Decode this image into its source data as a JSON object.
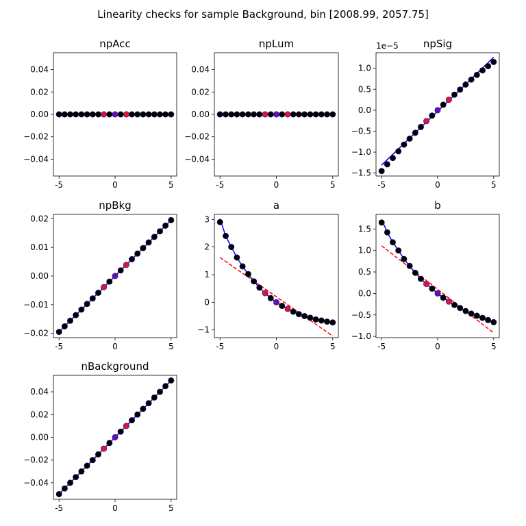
{
  "figure": {
    "title": "Linearity checks for sample Background, bin [2008.99, 2057.75]"
  },
  "chart_data": [
    {
      "type": "scatter",
      "title": "npAcc",
      "xlim": [
        -5.5,
        5.5
      ],
      "ylim": [
        -0.055,
        0.055
      ],
      "xticks": [
        "-5",
        "0",
        "5"
      ],
      "xtick_values": [
        -5,
        0,
        5
      ],
      "yticks": [
        "−0.04",
        "−0.02",
        "0.00",
        "0.02",
        "0.04"
      ],
      "ytick_values": [
        -0.04,
        -0.02,
        0,
        0.02,
        0.04
      ],
      "x": [
        -5,
        -4.5,
        -4,
        -3.5,
        -3,
        -2.5,
        -2,
        -1.5,
        -1,
        -0.5,
        0,
        0.5,
        1,
        1.5,
        2,
        2.5,
        3,
        3.5,
        4,
        4.5,
        5
      ],
      "y": [
        0,
        0,
        0,
        0,
        0,
        0,
        0,
        0,
        0,
        0,
        0,
        0,
        0,
        0,
        0,
        0,
        0,
        0,
        0,
        0,
        0
      ],
      "highlight": {
        "-1": "red",
        "0": "purple",
        "1": "red"
      },
      "blue_line": [
        [
          -5,
          0
        ],
        [
          5,
          0
        ]
      ],
      "red_dashed": [
        [
          -5,
          0
        ],
        [
          5,
          0
        ]
      ]
    },
    {
      "type": "scatter",
      "title": "npLum",
      "xlim": [
        -5.5,
        5.5
      ],
      "ylim": [
        -0.055,
        0.055
      ],
      "xticks": [
        "-5",
        "0",
        "5"
      ],
      "xtick_values": [
        -5,
        0,
        5
      ],
      "yticks": [
        "−0.04",
        "−0.02",
        "0.00",
        "0.02",
        "0.04"
      ],
      "ytick_values": [
        -0.04,
        -0.02,
        0,
        0.02,
        0.04
      ],
      "x": [
        -5,
        -4.5,
        -4,
        -3.5,
        -3,
        -2.5,
        -2,
        -1.5,
        -1,
        -0.5,
        0,
        0.5,
        1,
        1.5,
        2,
        2.5,
        3,
        3.5,
        4,
        4.5,
        5
      ],
      "y": [
        0,
        0,
        0,
        0,
        0,
        0,
        0,
        0,
        0,
        0,
        0,
        0,
        0,
        0,
        0,
        0,
        0,
        0,
        0,
        0,
        0
      ],
      "highlight": {
        "-1": "red",
        "0": "purple",
        "1": "red"
      },
      "blue_line": [
        [
          -5,
          0
        ],
        [
          5,
          0
        ]
      ],
      "red_dashed": [
        [
          -5,
          0
        ],
        [
          5,
          0
        ]
      ]
    },
    {
      "type": "scatter",
      "title": "npSig",
      "offset_label": "1e−5",
      "xlim": [
        -5.5,
        5.5
      ],
      "ylim": [
        -1.57,
        1.37
      ],
      "xticks": [
        "-5",
        "0",
        "5"
      ],
      "xtick_values": [
        -5,
        0,
        5
      ],
      "yticks": [
        "−1.5",
        "−1.0",
        "−0.5",
        "0.0",
        "0.5",
        "1.0"
      ],
      "ytick_values": [
        -1.5,
        -1.0,
        -0.5,
        0,
        0.5,
        1.0
      ],
      "x": [
        -5,
        -4.5,
        -4,
        -3.5,
        -3,
        -2.5,
        -2,
        -1.5,
        -1,
        -0.5,
        0,
        0.5,
        1,
        1.5,
        2,
        2.5,
        3,
        3.5,
        4,
        4.5,
        5
      ],
      "y": [
        -1.45,
        -1.29,
        -1.14,
        -0.98,
        -0.82,
        -0.68,
        -0.54,
        -0.4,
        -0.26,
        -0.13,
        0,
        0.13,
        0.25,
        0.37,
        0.49,
        0.61,
        0.73,
        0.84,
        0.95,
        1.05,
        1.15
      ],
      "highlight": {
        "-1": "red",
        "0": "purple",
        "1": "red"
      },
      "blue_line": [
        [
          -5,
          -1.31
        ],
        [
          5,
          1.26
        ]
      ],
      "red_dashed": [
        [
          -5,
          -1.31
        ],
        [
          5,
          1.26
        ]
      ]
    },
    {
      "type": "scatter",
      "title": "npBkg",
      "xlim": [
        -5.5,
        5.5
      ],
      "ylim": [
        -0.0215,
        0.0215
      ],
      "xticks": [
        "-5",
        "0",
        "5"
      ],
      "xtick_values": [
        -5,
        0,
        5
      ],
      "yticks": [
        "−0.02",
        "−0.01",
        "0.00",
        "0.01",
        "0.02"
      ],
      "ytick_values": [
        -0.02,
        -0.01,
        0,
        0.01,
        0.02
      ],
      "x": [
        -5,
        -4.5,
        -4,
        -3.5,
        -3,
        -2.5,
        -2,
        -1.5,
        -1,
        -0.5,
        0,
        0.5,
        1,
        1.5,
        2,
        2.5,
        3,
        3.5,
        4,
        4.5,
        5
      ],
      "y": [
        -0.0195,
        -0.01755,
        -0.0156,
        -0.01365,
        -0.0117,
        -0.00975,
        -0.0078,
        -0.00585,
        -0.0039,
        -0.00195,
        0,
        0.00195,
        0.0039,
        0.00585,
        0.0078,
        0.00975,
        0.0117,
        0.01365,
        0.0156,
        0.01755,
        0.0195
      ],
      "highlight": {
        "-1": "red",
        "0": "purple",
        "1": "red"
      },
      "blue_line": [
        [
          -5,
          -0.0195
        ],
        [
          5,
          0.0195
        ]
      ],
      "red_dashed": [
        [
          -5,
          -0.0195
        ],
        [
          5,
          0.0195
        ]
      ]
    },
    {
      "type": "scatter",
      "title": "a",
      "xlim": [
        -5.5,
        5.5
      ],
      "ylim": [
        -1.28,
        3.18
      ],
      "xticks": [
        "-5",
        "0",
        "5"
      ],
      "xtick_values": [
        -5,
        0,
        5
      ],
      "yticks": [
        "−1",
        "0",
        "1",
        "2",
        "3"
      ],
      "ytick_values": [
        -1,
        0,
        1,
        2,
        3
      ],
      "x": [
        -5,
        -4.5,
        -4,
        -3.5,
        -3,
        -2.5,
        -2,
        -1.5,
        -1,
        -0.5,
        0,
        0.5,
        1,
        1.5,
        2,
        2.5,
        3,
        3.5,
        4,
        4.5,
        5
      ],
      "y": [
        2.9,
        2.4,
        2.0,
        1.62,
        1.3,
        1.02,
        0.76,
        0.53,
        0.33,
        0.15,
        0,
        -0.13,
        -0.24,
        -0.34,
        -0.43,
        -0.5,
        -0.56,
        -0.62,
        -0.66,
        -0.7,
        -0.73
      ],
      "highlight": {
        "-1": "red",
        "0": "purple",
        "1": "red"
      },
      "blue_line": [
        [
          -5,
          3.02
        ],
        [
          -4.5,
          2.4
        ],
        [
          -4,
          2.0
        ],
        [
          -3.5,
          1.62
        ],
        [
          -3,
          1.3
        ],
        [
          -2.5,
          1.02
        ],
        [
          -2,
          0.76
        ],
        [
          -1.5,
          0.53
        ],
        [
          -1,
          0.33
        ],
        [
          -0.5,
          0.15
        ],
        [
          0,
          0
        ],
        [
          0.5,
          -0.13
        ],
        [
          1,
          -0.24
        ],
        [
          1.5,
          -0.34
        ],
        [
          2,
          -0.43
        ],
        [
          2.5,
          -0.5
        ],
        [
          3,
          -0.56
        ],
        [
          3.5,
          -0.62
        ],
        [
          4,
          -0.66
        ],
        [
          4.5,
          -0.7
        ],
        [
          5,
          -0.73
        ]
      ],
      "red_dashed": [
        [
          -5,
          1.62
        ],
        [
          5,
          -1.22
        ]
      ]
    },
    {
      "type": "scatter",
      "title": "b",
      "xlim": [
        -5.5,
        5.5
      ],
      "ylim": [
        -1.03,
        1.84
      ],
      "xticks": [
        "-5",
        "0",
        "5"
      ],
      "xtick_values": [
        -5,
        0,
        5
      ],
      "yticks": [
        "−1.0",
        "−0.5",
        "0.0",
        "0.5",
        "1.0",
        "1.5"
      ],
      "ytick_values": [
        -1.0,
        -0.5,
        0,
        0.5,
        1.0,
        1.5
      ],
      "x": [
        -5,
        -4.5,
        -4,
        -3.5,
        -3,
        -2.5,
        -2,
        -1.5,
        -1,
        -0.5,
        0,
        0.5,
        1,
        1.5,
        2,
        2.5,
        3,
        3.5,
        4,
        4.5,
        5
      ],
      "y": [
        1.65,
        1.42,
        1.19,
        1.0,
        0.8,
        0.64,
        0.48,
        0.34,
        0.22,
        0.11,
        0,
        -0.1,
        -0.19,
        -0.27,
        -0.34,
        -0.41,
        -0.47,
        -0.52,
        -0.57,
        -0.62,
        -0.67
      ],
      "highlight": {
        "-1": "red",
        "0": "purple",
        "1": "red"
      },
      "blue_line": [
        [
          -5,
          1.72
        ],
        [
          -4.5,
          1.42
        ],
        [
          -4,
          1.19
        ],
        [
          -3.5,
          1.0
        ],
        [
          -3,
          0.8
        ],
        [
          -2.5,
          0.64
        ],
        [
          -2,
          0.48
        ],
        [
          -1.5,
          0.34
        ],
        [
          -1,
          0.22
        ],
        [
          -0.5,
          0.11
        ],
        [
          0,
          0
        ],
        [
          0.5,
          -0.1
        ],
        [
          1,
          -0.19
        ],
        [
          1.5,
          -0.27
        ],
        [
          2,
          -0.34
        ],
        [
          2.5,
          -0.41
        ],
        [
          3,
          -0.47
        ],
        [
          3.5,
          -0.52
        ],
        [
          4,
          -0.57
        ],
        [
          4.5,
          -0.62
        ],
        [
          5,
          -0.67
        ]
      ],
      "red_dashed": [
        [
          -5,
          1.11
        ],
        [
          5,
          -0.92
        ]
      ]
    },
    {
      "type": "scatter",
      "title": "nBackground",
      "xlim": [
        -5.5,
        5.5
      ],
      "ylim": [
        -0.0545,
        0.0545
      ],
      "xticks": [
        "-5",
        "0",
        "5"
      ],
      "xtick_values": [
        -5,
        0,
        5
      ],
      "yticks": [
        "−0.04",
        "−0.02",
        "0.00",
        "0.02",
        "0.04"
      ],
      "ytick_values": [
        -0.04,
        -0.02,
        0,
        0.02,
        0.04
      ],
      "x": [
        -5,
        -4.5,
        -4,
        -3.5,
        -3,
        -2.5,
        -2,
        -1.5,
        -1,
        -0.5,
        0,
        0.5,
        1,
        1.5,
        2,
        2.5,
        3,
        3.5,
        4,
        4.5,
        5
      ],
      "y": [
        -0.05,
        -0.045,
        -0.04,
        -0.035,
        -0.03,
        -0.025,
        -0.02,
        -0.015,
        -0.01,
        -0.005,
        0,
        0.005,
        0.01,
        0.015,
        0.02,
        0.025,
        0.03,
        0.035,
        0.04,
        0.045,
        0.05
      ],
      "highlight": {
        "-1": "red",
        "0": "purple",
        "1": "red"
      },
      "blue_line": [
        [
          -5,
          -0.05
        ],
        [
          5,
          0.05
        ]
      ],
      "red_dashed": [
        [
          -5,
          -0.05
        ],
        [
          5,
          0.05
        ]
      ]
    }
  ],
  "colors": {
    "point": "#000000",
    "point_highlight_red": "#dc143c",
    "point_highlight_purple": "#6a0dad",
    "fit_line": "#0000ff",
    "linear_extrapolation": "#ff0000"
  }
}
